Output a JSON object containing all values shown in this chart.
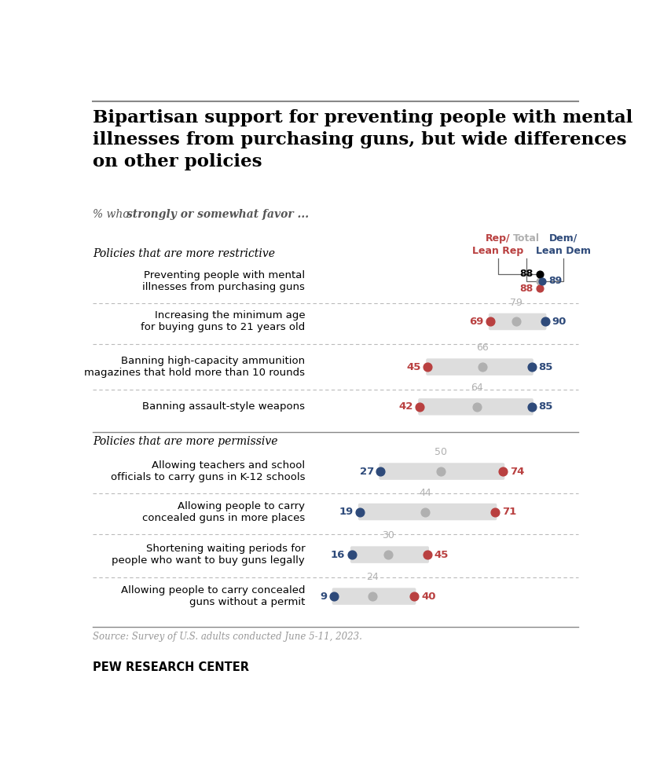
{
  "title": "Bipartisan support for preventing people with mental\nillnesses from purchasing guns, but wide differences\non other policies",
  "subtitle_plain": "% who ",
  "subtitle_bold": "strongly or somewhat favor ...",
  "col_header_rep": "Rep/\nLean Rep",
  "col_header_total": "Total",
  "col_header_dem": "Dem/\nLean Dem",
  "section1_label": "Policies that are more restrictive",
  "section2_label": "Policies that are more permissive",
  "restrictive_policies": [
    {
      "label": "Preventing people with mental\nillnesses from purchasing guns",
      "rep": 88,
      "total": 88,
      "dem": 89,
      "special": true
    },
    {
      "label": "Increasing the minimum age\nfor buying guns to 21 years old",
      "rep": 69,
      "total": 79,
      "dem": 90,
      "special": false
    },
    {
      "label": "Banning high-capacity ammunition\nmagazines that hold more than 10 rounds",
      "rep": 45,
      "total": 66,
      "dem": 85,
      "special": false
    },
    {
      "label": "Banning assault-style weapons",
      "rep": 42,
      "total": 64,
      "dem": 85,
      "special": false
    }
  ],
  "permissive_policies": [
    {
      "label": "Allowing teachers and school\nofficials to carry guns in K-12 schools",
      "dem": 27,
      "total": 50,
      "rep": 74,
      "special": false
    },
    {
      "label": "Allowing people to carry\nconcealed guns in more places",
      "dem": 19,
      "total": 44,
      "rep": 71,
      "special": false
    },
    {
      "label": "Shortening waiting periods for\npeople who want to buy guns legally",
      "dem": 16,
      "total": 30,
      "rep": 45,
      "special": false
    },
    {
      "label": "Allowing people to carry concealed\nguns without a permit",
      "dem": 9,
      "total": 24,
      "rep": 40,
      "special": false
    }
  ],
  "rep_color": "#b94040",
  "dem_color": "#2e4a7a",
  "total_color": "#b0b0b0",
  "bar_bg_color": "#dddddd",
  "source_text": "Source: Survey of U.S. adults conducted June 5-11, 2023.",
  "footer_text": "PEW RESEARCH CENTER"
}
